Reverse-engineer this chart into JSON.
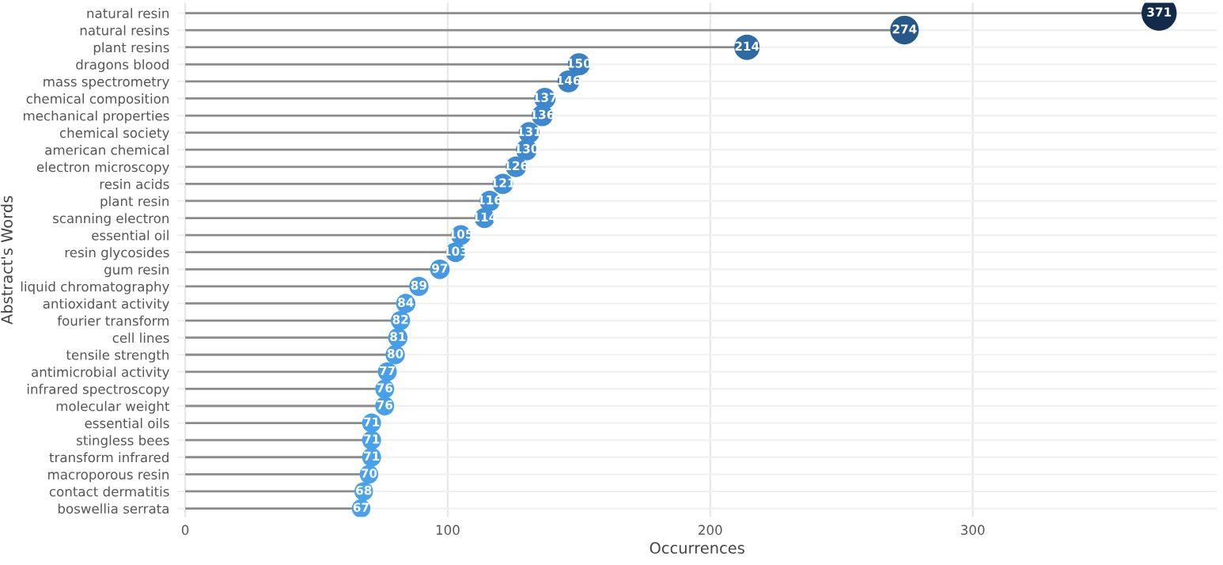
{
  "chart_data": {
    "type": "lollipop",
    "orientation": "horizontal",
    "xlabel": "Occurrences",
    "ylabel": "Abstract's Words",
    "categories": [
      "natural resin",
      "natural resins",
      "plant resins",
      "dragons blood",
      "mass spectrometry",
      "chemical composition",
      "mechanical properties",
      "chemical society",
      "american chemical",
      "electron microscopy",
      "resin acids",
      "plant resin",
      "scanning electron",
      "essential oil",
      "resin glycosides",
      "gum resin",
      "liquid chromatography",
      "antioxidant activity",
      "fourier transform",
      "cell lines",
      "tensile strength",
      "antimicrobial activity",
      "infrared spectroscopy",
      "molecular weight",
      "essential oils",
      "stingless bees",
      "transform infrared",
      "macroporous resin",
      "contact dermatitis",
      "boswellia serrata"
    ],
    "values": [
      371,
      274,
      214,
      150,
      146,
      137,
      136,
      131,
      130,
      126,
      121,
      116,
      114,
      105,
      103,
      97,
      89,
      84,
      82,
      81,
      80,
      77,
      76,
      76,
      71,
      71,
      71,
      70,
      68,
      67
    ],
    "colors": [
      "#132b4b",
      "#26598a",
      "#2e6aa4",
      "#3a80c5",
      "#3b82c8",
      "#3d87cd",
      "#3d87ce",
      "#3e89d0",
      "#3e89d0",
      "#3f8cd3",
      "#408ed5",
      "#4190d8",
      "#4191d9",
      "#4395dd",
      "#4395de",
      "#4598e1",
      "#469be4",
      "#479ce5",
      "#479de6",
      "#479de6",
      "#479de6",
      "#489fe8",
      "#48a0e8",
      "#48a0e8",
      "#49a1ea",
      "#49a1ea",
      "#49a1ea",
      "#49a2ea",
      "#4aa2eb",
      "#4aa2eb"
    ],
    "sizes": [
      1,
      0.66,
      0.52,
      0.4,
      0.39,
      0.37,
      0.37,
      0.36,
      0.36,
      0.35,
      0.34,
      0.34,
      0.33,
      0.32,
      0.32,
      0.31,
      0.3,
      0.3,
      0.3,
      0.3,
      0.3,
      0.29,
      0.29,
      0.29,
      0.29,
      0.29,
      0.29,
      0.28,
      0.28,
      0.28
    ],
    "xlim": [
      -3,
      393
    ],
    "xticks": [
      0,
      100,
      200,
      300
    ],
    "grid": true,
    "data_labels": true,
    "marker": "circle"
  }
}
